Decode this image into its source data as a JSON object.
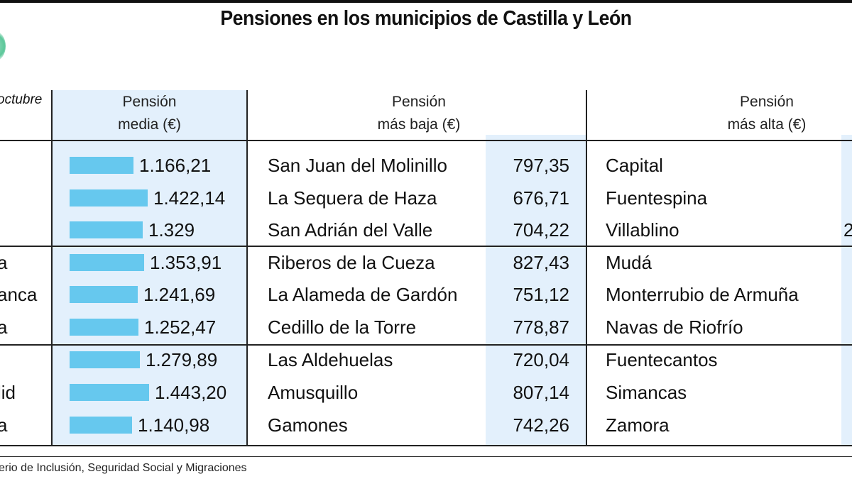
{
  "title": "Pensiones en los municipios de Castilla y León",
  "header_note": "octubre",
  "columns": {
    "media": [
      "Pensión",
      "media (€)"
    ],
    "baja": [
      "Pensión",
      "más baja (€)"
    ],
    "alta": [
      "Pensión",
      "más alta (€)"
    ]
  },
  "footer": "erio de Inclusión, Seguridad Social y Migraciones",
  "colors": {
    "bar": "#66c8ee",
    "column_bg": "#e3f0fc"
  },
  "chart_data": {
    "type": "table",
    "title": "Pensiones en los municipios de Castilla y León",
    "rows": [
      {
        "province": "",
        "media": 1166.21,
        "media_label": "1.166,21",
        "baja_muni": "San Juan del Molinillo",
        "baja": "797,35",
        "alta_muni": "Capital",
        "alta": ""
      },
      {
        "province": "",
        "media": 1422.14,
        "media_label": "1.422,14",
        "baja_muni": "La Sequera de Haza",
        "baja": "676,71",
        "alta_muni": "Fuentespina",
        "alta": ""
      },
      {
        "province": "",
        "media": 1329,
        "media_label": "1.329",
        "baja_muni": "San Adrián del Valle",
        "baja": "704,22",
        "alta_muni": "Villablino",
        "alta": "2"
      },
      {
        "province": "a",
        "media": 1353.91,
        "media_label": "1.353,91",
        "baja_muni": "Riberos de la Cueza",
        "baja": "827,43",
        "alta_muni": "Mudá",
        "alta": ""
      },
      {
        "province": "anca",
        "media": 1241.69,
        "media_label": "1.241,69",
        "baja_muni": "La Alameda de Gardón",
        "baja": "751,12",
        "alta_muni": "Monterrubio de Armuña",
        "alta": ""
      },
      {
        "province": "a",
        "media": 1252.47,
        "media_label": "1.252,47",
        "baja_muni": "Cedillo de la Torre",
        "baja": "778,87",
        "alta_muni": "Navas de Riofrío",
        "alta": ""
      },
      {
        "province": "",
        "media": 1279.89,
        "media_label": "1.279,89",
        "baja_muni": "Las Aldehuelas",
        "baja": "720,04",
        "alta_muni": "Fuentecantos",
        "alta": ""
      },
      {
        "province": "lid",
        "media": 1443.2,
        "media_label": "1.443,20",
        "baja_muni": "Amusquillo",
        "baja": "807,14",
        "alta_muni": "Simancas",
        "alta": ""
      },
      {
        "province": "a",
        "media": 1140.98,
        "media_label": "1.140,98",
        "baja_muni": "Gamones",
        "baja": "742,26",
        "alta_muni": "Zamora",
        "alta": ""
      }
    ]
  }
}
